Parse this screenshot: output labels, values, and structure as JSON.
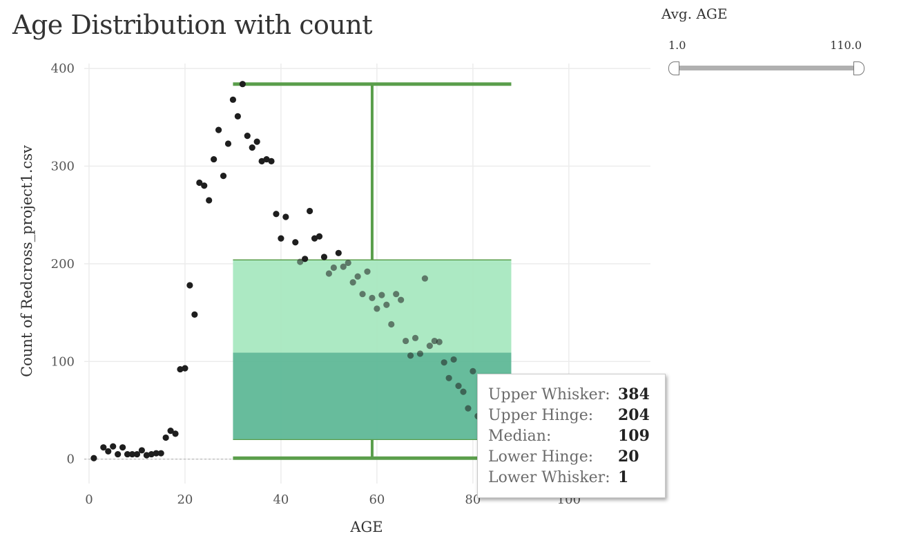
{
  "title": "Age Distribution with count",
  "filter": {
    "title": "Avg. AGE",
    "min_label": "1.0",
    "max_label": "110.0"
  },
  "tooltip": {
    "rows": [
      {
        "label": "Upper Whisker:",
        "value": "384"
      },
      {
        "label": "Upper Hinge:",
        "value": "204"
      },
      {
        "label": "Median:",
        "value": "109"
      },
      {
        "label": "Lower Hinge:",
        "value": "20"
      },
      {
        "label": "Lower Whisker:",
        "value": "1"
      }
    ]
  },
  "colors": {
    "box_upper": "#a8e8c0",
    "box_lower": "#5fb897",
    "whisker": "#5a9e4b",
    "points": "#1e1e1e",
    "grid": "#ececec"
  },
  "chart_data": {
    "type": "scatter",
    "title": "Age Distribution with count",
    "xlabel": "AGE",
    "ylabel": "Count of Redcross_project1.csv",
    "xlim": [
      -1,
      117
    ],
    "ylim": [
      -25,
      405
    ],
    "x_ticks": [
      0,
      20,
      40,
      60,
      80,
      100
    ],
    "y_ticks": [
      0,
      100,
      200,
      300,
      400
    ],
    "grid": true,
    "points": [
      [
        1,
        1
      ],
      [
        3,
        12
      ],
      [
        4,
        8
      ],
      [
        5,
        13
      ],
      [
        6,
        5
      ],
      [
        7,
        12
      ],
      [
        8,
        5
      ],
      [
        9,
        5
      ],
      [
        10,
        5
      ],
      [
        11,
        9
      ],
      [
        12,
        4
      ],
      [
        13,
        5
      ],
      [
        14,
        6
      ],
      [
        15,
        6
      ],
      [
        16,
        22
      ],
      [
        17,
        29
      ],
      [
        18,
        26
      ],
      [
        19,
        92
      ],
      [
        20,
        93
      ],
      [
        21,
        178
      ],
      [
        22,
        148
      ],
      [
        23,
        283
      ],
      [
        24,
        280
      ],
      [
        25,
        265
      ],
      [
        26,
        307
      ],
      [
        27,
        337
      ],
      [
        28,
        290
      ],
      [
        29,
        323
      ],
      [
        30,
        368
      ],
      [
        31,
        351
      ],
      [
        32,
        384
      ],
      [
        33,
        331
      ],
      [
        34,
        319
      ],
      [
        35,
        325
      ],
      [
        36,
        305
      ],
      [
        37,
        307
      ],
      [
        38,
        305
      ],
      [
        39,
        251
      ],
      [
        40,
        226
      ],
      [
        41,
        248
      ],
      [
        43,
        222
      ],
      [
        44,
        202
      ],
      [
        45,
        205
      ],
      [
        46,
        254
      ],
      [
        47,
        226
      ],
      [
        48,
        228
      ],
      [
        49,
        207
      ],
      [
        50,
        190
      ],
      [
        51,
        196
      ],
      [
        52,
        211
      ],
      [
        53,
        197
      ],
      [
        54,
        201
      ],
      [
        55,
        181
      ],
      [
        56,
        187
      ],
      [
        57,
        169
      ],
      [
        58,
        192
      ],
      [
        59,
        165
      ],
      [
        60,
        154
      ],
      [
        61,
        168
      ],
      [
        62,
        158
      ],
      [
        63,
        138
      ],
      [
        64,
        169
      ],
      [
        65,
        163
      ],
      [
        66,
        121
      ],
      [
        67,
        106
      ],
      [
        68,
        124
      ],
      [
        69,
        108
      ],
      [
        70,
        185
      ],
      [
        71,
        116
      ],
      [
        72,
        121
      ],
      [
        73,
        120
      ],
      [
        74,
        99
      ],
      [
        75,
        83
      ],
      [
        76,
        102
      ],
      [
        77,
        75
      ],
      [
        78,
        69
      ],
      [
        79,
        52
      ],
      [
        80,
        90
      ],
      [
        81,
        44
      ]
    ],
    "boxplot": {
      "x_range": [
        30,
        88
      ],
      "upper_whisker": 384,
      "upper_hinge": 204,
      "median": 109,
      "lower_hinge": 20,
      "lower_whisker": 1
    }
  }
}
